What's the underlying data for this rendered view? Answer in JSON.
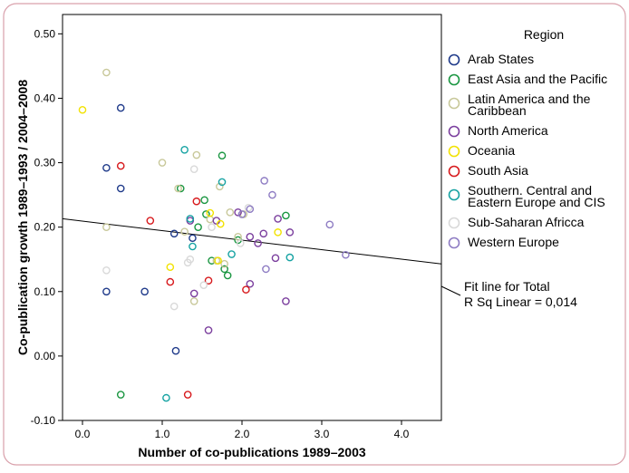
{
  "chart_data": {
    "type": "scatter",
    "title": "",
    "xlabel": "Number of co-publications 1989–2003",
    "ylabel": "Co-publication growth 1989–1993 / 2004–2008",
    "xlim": [
      -0.25,
      4.5
    ],
    "ylim": [
      -0.1,
      0.53
    ],
    "x_ticks": [
      0.0,
      1.0,
      2.0,
      3.0,
      4.0
    ],
    "x_tick_labels": [
      "0.0",
      "1.0",
      "2.0",
      "3.0",
      "4.0"
    ],
    "y_ticks": [
      -0.1,
      0.0,
      0.1,
      0.2,
      0.3,
      0.4,
      0.5
    ],
    "y_tick_labels": [
      "-0.10",
      "0.00",
      "0.10",
      "0.20",
      "0.30",
      "0.40",
      "0.50"
    ],
    "grid": false,
    "legend": {
      "title": "Region",
      "placement": "right",
      "fit_label_lines": [
        "Fit line for Total",
        "R Sq Linear = 0,014"
      ]
    },
    "fit_line": {
      "x": [
        -0.25,
        4.5
      ],
      "y": [
        0.213,
        0.143
      ],
      "color": "#000000"
    },
    "series": [
      {
        "name": "Arab States",
        "label_lines": [
          "Arab States"
        ],
        "color": "#1f3a8a",
        "points": [
          [
            0.3,
            0.292
          ],
          [
            0.3,
            0.1
          ],
          [
            0.48,
            0.385
          ],
          [
            0.48,
            0.26
          ],
          [
            0.78,
            0.1
          ],
          [
            1.15,
            0.19
          ],
          [
            1.17,
            0.008
          ],
          [
            1.38,
            0.183
          ]
        ]
      },
      {
        "name": "East Asia and the Pacific",
        "label_lines": [
          "East Asia and the Pacific"
        ],
        "color": "#1a9641",
        "points": [
          [
            0.48,
            -0.06
          ],
          [
            1.23,
            0.26
          ],
          [
            1.45,
            0.2
          ],
          [
            1.53,
            0.242
          ],
          [
            1.55,
            0.22
          ],
          [
            1.62,
            0.148
          ],
          [
            1.75,
            0.311
          ],
          [
            1.78,
            0.135
          ],
          [
            1.82,
            0.125
          ],
          [
            1.95,
            0.18
          ],
          [
            2.55,
            0.218
          ]
        ]
      },
      {
        "name": "Latin America and the Caribbean",
        "label_lines": [
          "Latin America and the",
          "Caribbean"
        ],
        "color": "#c8c89a",
        "points": [
          [
            0.3,
            0.44
          ],
          [
            0.3,
            0.2
          ],
          [
            1.0,
            0.3
          ],
          [
            1.2,
            0.26
          ],
          [
            1.28,
            0.193
          ],
          [
            1.4,
            0.085
          ],
          [
            1.43,
            0.312
          ],
          [
            1.6,
            0.212
          ],
          [
            1.68,
            0.148
          ],
          [
            1.72,
            0.263
          ],
          [
            1.78,
            0.143
          ],
          [
            1.85,
            0.223
          ],
          [
            1.95,
            0.185
          ],
          [
            2.02,
            0.22
          ]
        ]
      },
      {
        "name": "North America",
        "label_lines": [
          "North America"
        ],
        "color": "#7b3f9e",
        "points": [
          [
            1.35,
            0.21
          ],
          [
            1.4,
            0.097
          ],
          [
            1.58,
            0.04
          ],
          [
            1.68,
            0.21
          ],
          [
            1.95,
            0.223
          ],
          [
            2.1,
            0.185
          ],
          [
            2.1,
            0.112
          ],
          [
            2.2,
            0.175
          ],
          [
            2.27,
            0.19
          ],
          [
            2.42,
            0.152
          ],
          [
            2.45,
            0.213
          ],
          [
            2.55,
            0.085
          ],
          [
            2.6,
            0.192
          ]
        ]
      },
      {
        "name": "Oceania",
        "label_lines": [
          "Oceania"
        ],
        "color": "#f2e200",
        "points": [
          [
            0.0,
            0.382
          ],
          [
            1.1,
            0.138
          ],
          [
            1.6,
            0.222
          ],
          [
            1.7,
            0.148
          ],
          [
            1.73,
            0.205
          ],
          [
            2.45,
            0.192
          ]
        ]
      },
      {
        "name": "South Asia",
        "label_lines": [
          "South Asia"
        ],
        "color": "#d7191c",
        "points": [
          [
            0.48,
            0.295
          ],
          [
            0.85,
            0.21
          ],
          [
            1.1,
            0.115
          ],
          [
            1.32,
            -0.06
          ],
          [
            1.43,
            0.24
          ],
          [
            1.58,
            0.117
          ],
          [
            2.05,
            0.103
          ]
        ]
      },
      {
        "name": "Southern. Central and Eastern Europe and CIS",
        "label_lines": [
          "Southern. Central and",
          "Eastern Europe and CIS"
        ],
        "color": "#17a3a3",
        "points": [
          [
            1.05,
            -0.065
          ],
          [
            1.28,
            0.32
          ],
          [
            1.35,
            0.213
          ],
          [
            1.38,
            0.17
          ],
          [
            1.75,
            0.27
          ],
          [
            1.87,
            0.158
          ],
          [
            2.6,
            0.153
          ]
        ]
      },
      {
        "name": "Sub-Saharan Africca",
        "label_lines": [
          "Sub-Saharan Africca"
        ],
        "color": "#d9d9d9",
        "points": [
          [
            0.3,
            0.133
          ],
          [
            1.15,
            0.077
          ],
          [
            1.32,
            0.145
          ],
          [
            1.35,
            0.15
          ],
          [
            1.4,
            0.29
          ],
          [
            1.52,
            0.11
          ],
          [
            1.62,
            0.2
          ],
          [
            1.98,
            0.175
          ],
          [
            2.08,
            0.23
          ]
        ]
      },
      {
        "name": "Western Europe",
        "label_lines": [
          "Western Europe"
        ],
        "color": "#8e7cc3",
        "points": [
          [
            2.0,
            0.22
          ],
          [
            2.1,
            0.228
          ],
          [
            2.28,
            0.272
          ],
          [
            2.3,
            0.135
          ],
          [
            2.38,
            0.25
          ],
          [
            3.1,
            0.204
          ],
          [
            3.3,
            0.157
          ]
        ]
      }
    ]
  }
}
